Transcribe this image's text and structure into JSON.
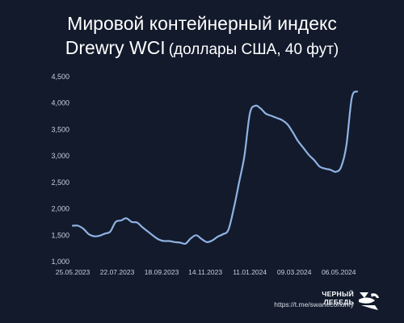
{
  "header": {
    "title_line1": "Мировой контейнерный индекс",
    "title_line2": "Drewry WCI",
    "title_unit": "(доллары США, 40 фут)"
  },
  "footer": {
    "name": "ЧЕРНЫЙ ЛЕБЕДЬ",
    "link": "https://t.me/swaneconomy",
    "logo_icon": "swan-logo-icon"
  },
  "colors": {
    "background": "#121a2c",
    "line": "#8fb3e2",
    "text": "#ffffff",
    "axis_text": "#c9ced8"
  },
  "chart_data": {
    "type": "line",
    "title": "Мировой контейнерный индекс Drewry WCI (доллары США, 40 фут)",
    "xlabel": "",
    "ylabel": "",
    "ylim": [
      1000,
      4500
    ],
    "yticks": [
      1000,
      1500,
      2000,
      2500,
      3000,
      3500,
      4000,
      4500
    ],
    "ytick_labels": [
      "1,000",
      "1,500",
      "2,000",
      "2,500",
      "3,000",
      "3,500",
      "4,000",
      "4,500"
    ],
    "xlim": [
      "2023-05-25",
      "2024-05-30"
    ],
    "xticks": [
      "2023-05-25",
      "2023-07-22",
      "2023-09-18",
      "2023-11-14",
      "2024-01-11",
      "2024-03-09",
      "2024-05-06"
    ],
    "xtick_labels": [
      "25.05.2023",
      "22.07.2023",
      "18.09.2023",
      "14.11.2023",
      "11.01.2024",
      "09.03.2024",
      "06.05.2024"
    ],
    "grid": false,
    "series": [
      {
        "values": [
          [
            "2023-05-25",
            1680
          ],
          [
            "2023-06-01",
            1680
          ],
          [
            "2023-06-08",
            1620
          ],
          [
            "2023-06-15",
            1520
          ],
          [
            "2023-06-22",
            1480
          ],
          [
            "2023-06-29",
            1490
          ],
          [
            "2023-07-06",
            1530
          ],
          [
            "2023-07-13",
            1570
          ],
          [
            "2023-07-20",
            1750
          ],
          [
            "2023-07-27",
            1780
          ],
          [
            "2023-08-03",
            1820
          ],
          [
            "2023-08-10",
            1750
          ],
          [
            "2023-08-17",
            1740
          ],
          [
            "2023-08-24",
            1650
          ],
          [
            "2023-08-31",
            1570
          ],
          [
            "2023-09-07",
            1490
          ],
          [
            "2023-09-14",
            1420
          ],
          [
            "2023-09-21",
            1390
          ],
          [
            "2023-09-28",
            1390
          ],
          [
            "2023-10-05",
            1370
          ],
          [
            "2023-10-12",
            1360
          ],
          [
            "2023-10-19",
            1340
          ],
          [
            "2023-10-26",
            1440
          ],
          [
            "2023-11-02",
            1500
          ],
          [
            "2023-11-09",
            1430
          ],
          [
            "2023-11-16",
            1370
          ],
          [
            "2023-11-23",
            1400
          ],
          [
            "2023-11-30",
            1470
          ],
          [
            "2023-12-07",
            1520
          ],
          [
            "2023-12-14",
            1600
          ],
          [
            "2023-12-21",
            2000
          ],
          [
            "2023-12-28",
            2500
          ],
          [
            "2024-01-04",
            3000
          ],
          [
            "2024-01-11",
            3800
          ],
          [
            "2024-01-18",
            3950
          ],
          [
            "2024-01-25",
            3900
          ],
          [
            "2024-02-01",
            3800
          ],
          [
            "2024-02-08",
            3760
          ],
          [
            "2024-02-15",
            3720
          ],
          [
            "2024-02-22",
            3680
          ],
          [
            "2024-02-29",
            3600
          ],
          [
            "2024-03-07",
            3450
          ],
          [
            "2024-03-14",
            3280
          ],
          [
            "2024-03-21",
            3150
          ],
          [
            "2024-03-28",
            3020
          ],
          [
            "2024-04-04",
            2920
          ],
          [
            "2024-04-11",
            2800
          ],
          [
            "2024-04-18",
            2760
          ],
          [
            "2024-04-25",
            2740
          ],
          [
            "2024-05-02",
            2700
          ],
          [
            "2024-05-09",
            2790
          ],
          [
            "2024-05-16",
            3200
          ],
          [
            "2024-05-23",
            4100
          ],
          [
            "2024-05-30",
            4220
          ]
        ]
      }
    ]
  }
}
